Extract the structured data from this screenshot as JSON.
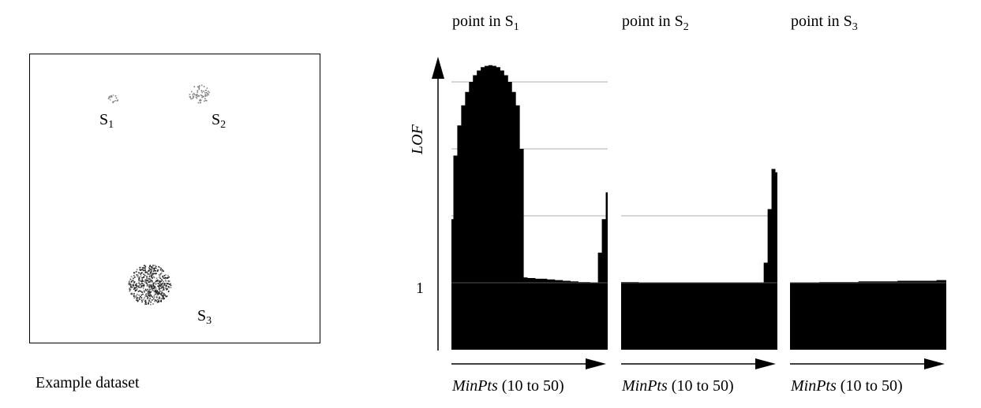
{
  "dataset": {
    "caption": "Example dataset",
    "clusters": [
      {
        "label": "S",
        "sub": "1"
      },
      {
        "label": "S",
        "sub": "2"
      },
      {
        "label": "S",
        "sub": "3"
      }
    ]
  },
  "y_axis_label": "LOF",
  "y_tick_label": "1",
  "colors": {
    "fill": "#000000",
    "grid": "#c8c8c8",
    "points": "#333333"
  },
  "chart_data": [
    {
      "type": "area",
      "title_prefix": "point in ",
      "title_var": "S",
      "title_sub": "1",
      "x_label_var": "MinPts",
      "x_label_rest": " (10 to 50)",
      "x": [
        10,
        11,
        12,
        13,
        14,
        15,
        16,
        17,
        18,
        19,
        20,
        21,
        22,
        23,
        24,
        25,
        26,
        27,
        28,
        29,
        30,
        31,
        32,
        33,
        34,
        35,
        36,
        37,
        38,
        39,
        40,
        41,
        42,
        43,
        44,
        45,
        46,
        47,
        48,
        49,
        50
      ],
      "y": [
        1.95,
        2.9,
        3.35,
        3.65,
        3.85,
        4.0,
        4.1,
        4.17,
        4.22,
        4.24,
        4.25,
        4.24,
        4.22,
        4.17,
        4.1,
        4.0,
        3.85,
        3.65,
        3.0,
        1.08,
        1.07,
        1.07,
        1.06,
        1.06,
        1.06,
        1.05,
        1.05,
        1.04,
        1.04,
        1.03,
        1.03,
        1.02,
        1.02,
        1.01,
        1.01,
        1.01,
        1.0,
        1.0,
        1.45,
        1.95,
        2.35
      ],
      "ylim": [
        0,
        4.4
      ],
      "gridlines": [
        1,
        2,
        3,
        4
      ]
    },
    {
      "type": "area",
      "title_prefix": "point in ",
      "title_var": "S",
      "title_sub": "2",
      "x_label_var": "MinPts",
      "x_label_rest": " (10 to 50)",
      "x": [
        10,
        13,
        16,
        19,
        22,
        25,
        28,
        31,
        34,
        37,
        40,
        43,
        46,
        47,
        48,
        49,
        50
      ],
      "y": [
        1.01,
        1.01,
        1.0,
        1.0,
        1.0,
        1.0,
        1.0,
        1.0,
        1.0,
        1.0,
        1.0,
        1.0,
        1.0,
        1.3,
        2.1,
        2.7,
        2.65
      ],
      "ylim": [
        0,
        4.4
      ],
      "gridlines": [
        1,
        2
      ]
    },
    {
      "type": "area",
      "title_prefix": "point in ",
      "title_var": "S",
      "title_sub": "3",
      "x_label_var": "MinPts",
      "x_label_rest": " (10 to 50)",
      "x": [
        10,
        15,
        20,
        25,
        30,
        35,
        40,
        45,
        50
      ],
      "y": [
        1.0,
        1.0,
        1.01,
        1.01,
        1.02,
        1.02,
        1.03,
        1.03,
        1.04
      ],
      "ylim": [
        0,
        4.4
      ],
      "gridlines": [
        1
      ]
    }
  ]
}
